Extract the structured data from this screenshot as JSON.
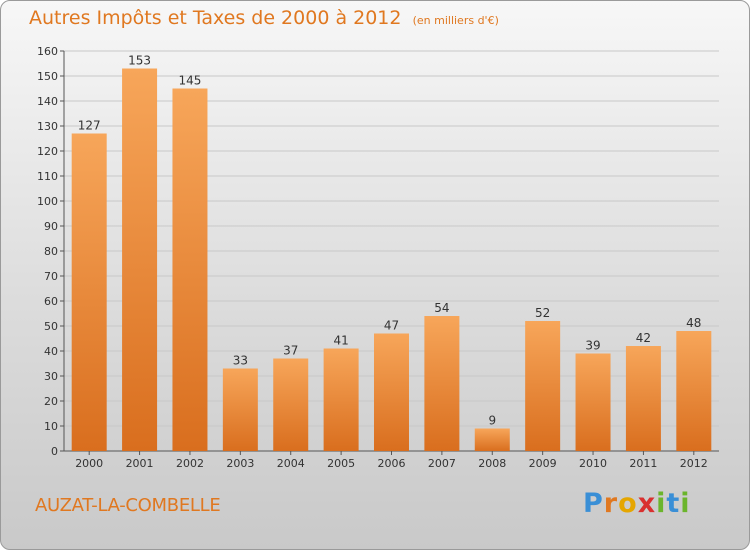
{
  "header": {
    "title": "Autres Impôts et Taxes de 2000 à 2012",
    "unit": "(en milliers d'€)"
  },
  "footer": {
    "commune": "AUZAT-LA-COMBELLE",
    "brand_letters": [
      "P",
      "r",
      "o",
      "x",
      "i",
      "t",
      "i"
    ],
    "brand_colors": [
      "#3a8fd6",
      "#e07820",
      "#e5a600",
      "#d9302f",
      "#6bb52c",
      "#3a8fd6",
      "#6bb52c"
    ]
  },
  "colors": {
    "accent": "#e07820",
    "bar_light": "#f7a65a",
    "bar_dark": "#d96e1e",
    "grid": "#c8c8c8",
    "axis": "#555555"
  },
  "chart_data": {
    "type": "bar",
    "title": "Autres Impôts et Taxes de 2000 à 2012",
    "subtitle": "(en milliers d'€)",
    "xlabel": "",
    "ylabel": "",
    "categories": [
      "2000",
      "2001",
      "2002",
      "2003",
      "2004",
      "2005",
      "2006",
      "2007",
      "2008",
      "2009",
      "2010",
      "2011",
      "2012"
    ],
    "values": [
      127,
      153,
      145,
      33,
      37,
      41,
      47,
      54,
      9,
      52,
      39,
      42,
      48
    ],
    "ylim": [
      0,
      160
    ],
    "yticks": [
      0,
      10,
      20,
      30,
      40,
      50,
      60,
      70,
      80,
      90,
      100,
      110,
      120,
      130,
      140,
      150,
      160
    ],
    "grid": true,
    "legend": "none",
    "data_labels": true
  }
}
